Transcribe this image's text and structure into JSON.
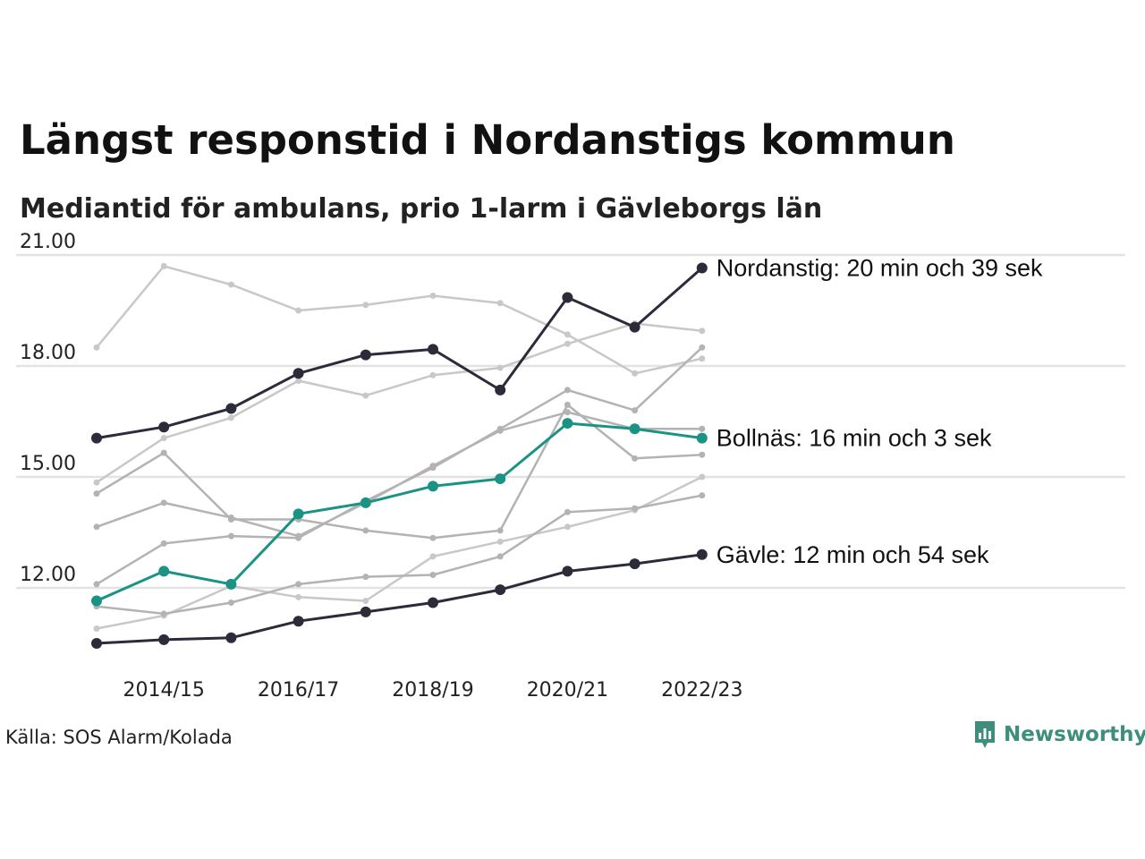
{
  "header": {
    "title": "Längst responstid i Nordanstigs kommun",
    "subtitle": "Mediantid för ambulans, prio 1-larm i Gävleborgs län"
  },
  "footer": {
    "source": "Källa: SOS Alarm/Kolada",
    "brand": "Newsworthy"
  },
  "colors": {
    "background_series": [
      "#c8c8c8",
      "#b3b3b3"
    ],
    "dark": "#2b2b3a",
    "highlight": "#1a9385",
    "gridline": "#e3e3e3",
    "brand": "#3e8e7e"
  },
  "chart_data": {
    "type": "line",
    "x": [
      "2013/14",
      "2014/15",
      "2015/16",
      "2016/17",
      "2017/18",
      "2018/19",
      "2019/20",
      "2020/21",
      "2021/22",
      "2022/23"
    ],
    "x_tick_labels": [
      "2014/15",
      "2016/17",
      "2018/19",
      "2020/21",
      "2022/23"
    ],
    "y_ticks": [
      "12.00",
      "15.00",
      "18.00",
      "21.00"
    ],
    "ylim": [
      10.3,
      21.6
    ],
    "grid": "horizontal",
    "series": [
      {
        "key": "bg1",
        "style": "light",
        "values": [
          18.5,
          20.7,
          20.2,
          19.5,
          19.65,
          19.9,
          19.7,
          18.85,
          17.8,
          18.2
        ]
      },
      {
        "key": "bg2",
        "style": "light",
        "values": [
          14.85,
          16.05,
          16.6,
          17.6,
          17.2,
          17.75,
          17.95,
          18.6,
          19.15,
          18.95
        ]
      },
      {
        "key": "bg3",
        "style": "light",
        "values": [
          10.9,
          11.25,
          12.05,
          11.75,
          11.65,
          12.85,
          13.25,
          13.65,
          14.1,
          15.0
        ]
      },
      {
        "key": "bg4",
        "style": "medium",
        "values": [
          14.55,
          15.65,
          13.85,
          13.85,
          13.55,
          13.35,
          13.55,
          16.95,
          15.5,
          15.6
        ]
      },
      {
        "key": "bg5",
        "style": "medium",
        "values": [
          13.65,
          14.3,
          13.9,
          13.4,
          14.3,
          15.3,
          16.25,
          16.75,
          16.3,
          16.3
        ]
      },
      {
        "key": "bg6",
        "style": "medium",
        "values": [
          12.1,
          13.2,
          13.4,
          13.35,
          14.35,
          15.25,
          16.3,
          17.35,
          16.8,
          18.5
        ]
      },
      {
        "key": "bg7",
        "style": "medium",
        "values": [
          11.5,
          11.3,
          11.6,
          12.1,
          12.3,
          12.35,
          12.85,
          14.05,
          14.15,
          14.5
        ]
      },
      {
        "key": "nordanstig",
        "style": "dark",
        "name": "Nordanstig: 20 min och 39 sek",
        "values": [
          16.05,
          16.35,
          16.85,
          17.8,
          18.3,
          18.45,
          17.35,
          19.85,
          19.05,
          20.65
        ]
      },
      {
        "key": "bollnas",
        "style": "highlight",
        "name": "Bollnäs: 16 min och 3 sek",
        "values": [
          11.65,
          12.45,
          12.1,
          14.0,
          14.3,
          14.75,
          14.95,
          16.45,
          16.3,
          16.05
        ]
      },
      {
        "key": "gavle",
        "style": "dark",
        "name": "Gävle: 12 min och 54 sek",
        "values": [
          10.5,
          10.6,
          10.65,
          11.1,
          11.35,
          11.6,
          11.95,
          12.45,
          12.65,
          12.9
        ]
      }
    ]
  }
}
